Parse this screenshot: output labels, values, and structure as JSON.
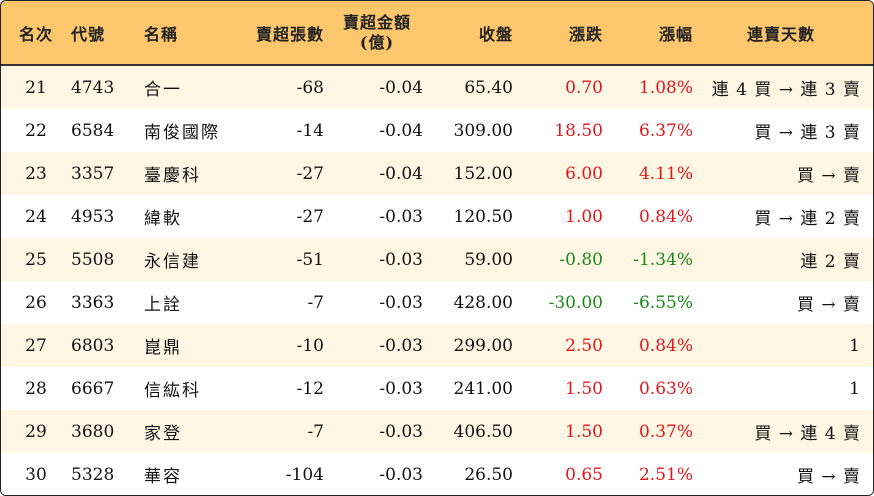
{
  "colors": {
    "header_bg": "#fbc66c",
    "odd_row_bg": "#fff6e4",
    "up": "#e3161b",
    "down": "#1a8a1a"
  },
  "headers": {
    "rank": "名次",
    "code": "代號",
    "name": "名稱",
    "sell_qty": "賣超張數",
    "sell_amt_line1": "賣超金額",
    "sell_amt_line2": "(億)",
    "close": "收盤",
    "change": "漲跌",
    "pct": "漲幅",
    "streak": "連賣天數"
  },
  "rows": [
    {
      "rank": "21",
      "code": "4743",
      "name": "合一",
      "qty": "-68",
      "amt": "-0.04",
      "close": "65.40",
      "change": "0.70",
      "pct": "1.08%",
      "dir": "up",
      "streak": "連 4 買 → 連 3 賣"
    },
    {
      "rank": "22",
      "code": "6584",
      "name": "南俊國際",
      "qty": "-14",
      "amt": "-0.04",
      "close": "309.00",
      "change": "18.50",
      "pct": "6.37%",
      "dir": "up",
      "streak": "買 → 連 3 賣"
    },
    {
      "rank": "23",
      "code": "3357",
      "name": "臺慶科",
      "qty": "-27",
      "amt": "-0.04",
      "close": "152.00",
      "change": "6.00",
      "pct": "4.11%",
      "dir": "up",
      "streak": "買 → 賣"
    },
    {
      "rank": "24",
      "code": "4953",
      "name": "緯軟",
      "qty": "-27",
      "amt": "-0.03",
      "close": "120.50",
      "change": "1.00",
      "pct": "0.84%",
      "dir": "up",
      "streak": "買 → 連 2 賣"
    },
    {
      "rank": "25",
      "code": "5508",
      "name": "永信建",
      "qty": "-51",
      "amt": "-0.03",
      "close": "59.00",
      "change": "-0.80",
      "pct": "-1.34%",
      "dir": "down",
      "streak": "連 2 賣"
    },
    {
      "rank": "26",
      "code": "3363",
      "name": "上詮",
      "qty": "-7",
      "amt": "-0.03",
      "close": "428.00",
      "change": "-30.00",
      "pct": "-6.55%",
      "dir": "down",
      "streak": "買 → 賣"
    },
    {
      "rank": "27",
      "code": "6803",
      "name": "崑鼎",
      "qty": "-10",
      "amt": "-0.03",
      "close": "299.00",
      "change": "2.50",
      "pct": "0.84%",
      "dir": "up",
      "streak": "1"
    },
    {
      "rank": "28",
      "code": "6667",
      "name": "信紘科",
      "qty": "-12",
      "amt": "-0.03",
      "close": "241.00",
      "change": "1.50",
      "pct": "0.63%",
      "dir": "up",
      "streak": "1"
    },
    {
      "rank": "29",
      "code": "3680",
      "name": "家登",
      "qty": "-7",
      "amt": "-0.03",
      "close": "406.50",
      "change": "1.50",
      "pct": "0.37%",
      "dir": "up",
      "streak": "買 → 連 4 賣"
    },
    {
      "rank": "30",
      "code": "5328",
      "name": "華容",
      "qty": "-104",
      "amt": "-0.03",
      "close": "26.50",
      "change": "0.65",
      "pct": "2.51%",
      "dir": "up",
      "streak": "買 → 賣"
    }
  ]
}
